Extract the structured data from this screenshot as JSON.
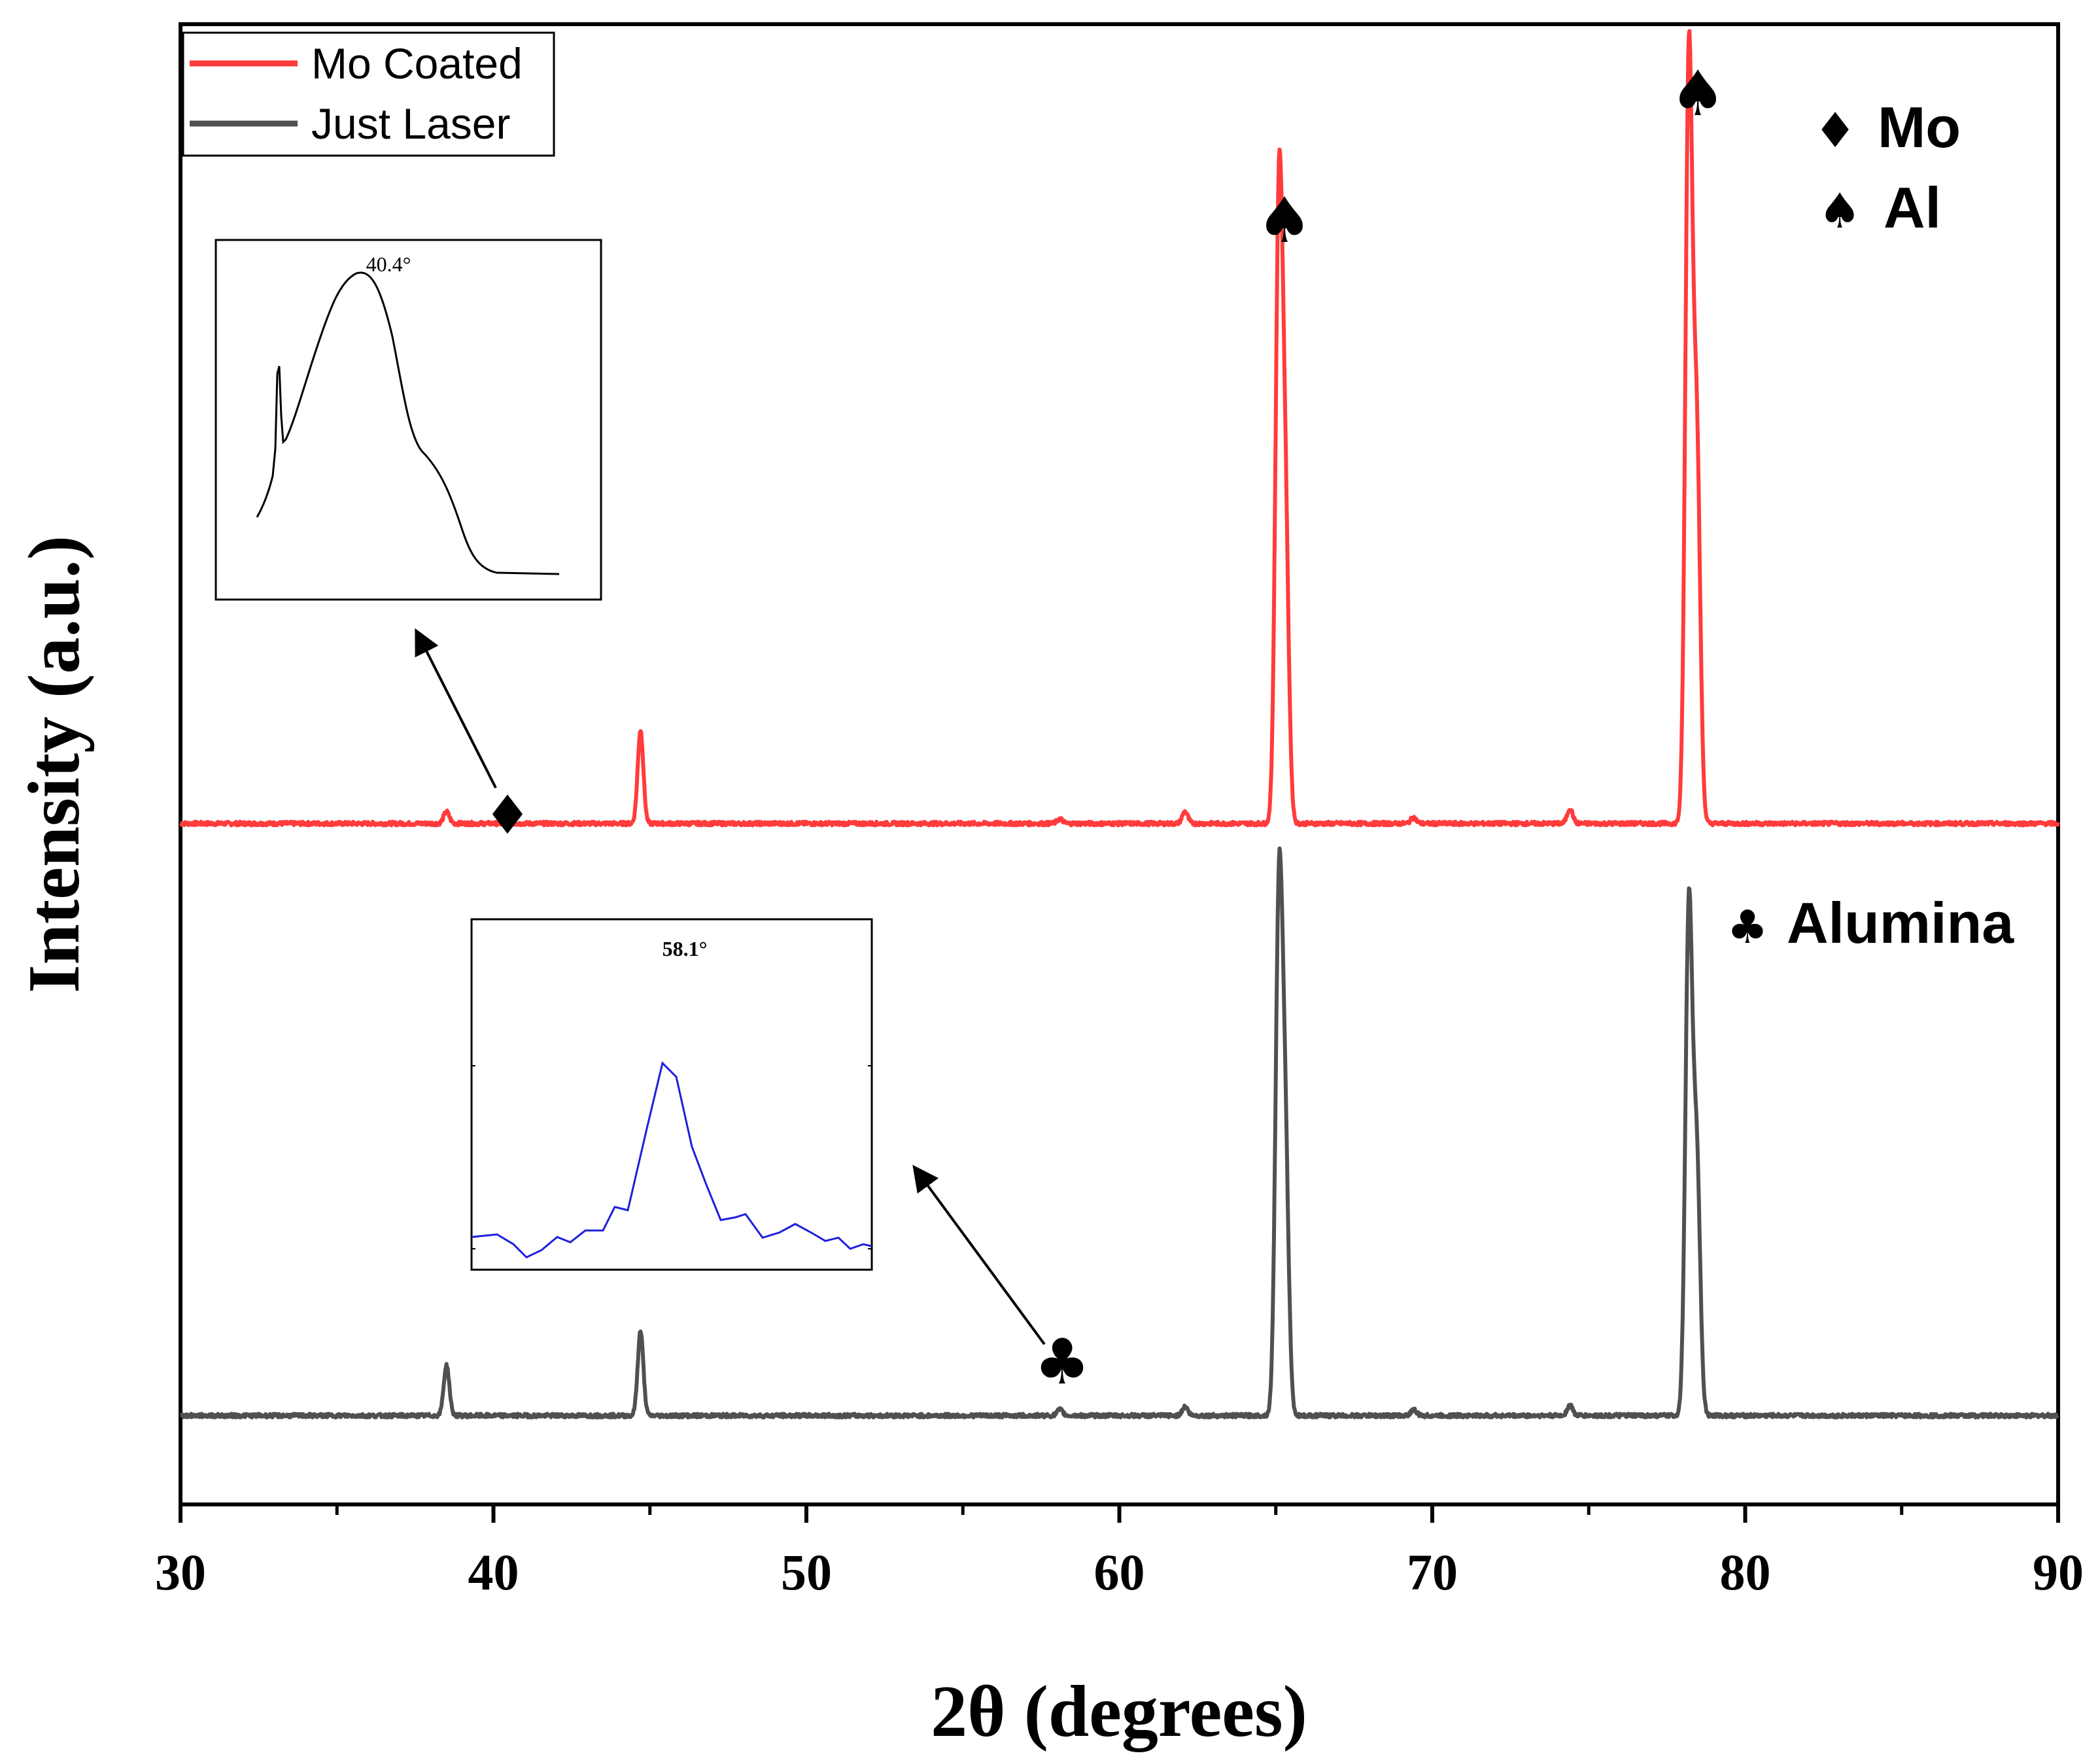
{
  "chart_data": {
    "type": "line",
    "xlabel": "2θ (degrees)",
    "ylabel": "Intensity (a.u.)",
    "xlim": [
      30,
      90
    ],
    "xticks": [
      "30",
      "40",
      "50",
      "60",
      "70",
      "80",
      "90"
    ],
    "ylim": [
      0,
      1
    ],
    "grid": false,
    "legend_position": "top-left",
    "series": [
      {
        "name": "Mo Coated",
        "color": "#ff3b3b",
        "baseline": 0.46,
        "peaks": [
          {
            "x": 38.5,
            "h": 0.008
          },
          {
            "x": 44.7,
            "h": 0.063
          },
          {
            "x": 58.1,
            "h": 0.003
          },
          {
            "x": 62.1,
            "h": 0.008
          },
          {
            "x": 65.1,
            "h": 0.41
          },
          {
            "x": 65.3,
            "h": 0.2
          },
          {
            "x": 69.4,
            "h": 0.004
          },
          {
            "x": 74.4,
            "h": 0.01
          },
          {
            "x": 78.2,
            "h": 0.515
          },
          {
            "x": 78.45,
            "h": 0.255
          }
        ]
      },
      {
        "name": "Just Laser",
        "color": "#505050",
        "baseline": 0.06,
        "peaks": [
          {
            "x": 38.5,
            "h": 0.034
          },
          {
            "x": 44.7,
            "h": 0.057
          },
          {
            "x": 58.1,
            "h": 0.004
          },
          {
            "x": 62.1,
            "h": 0.006
          },
          {
            "x": 65.1,
            "h": 0.342
          },
          {
            "x": 65.3,
            "h": 0.175
          },
          {
            "x": 69.4,
            "h": 0.004
          },
          {
            "x": 74.4,
            "h": 0.007
          },
          {
            "x": 78.2,
            "h": 0.342
          },
          {
            "x": 78.45,
            "h": 0.172
          }
        ]
      }
    ],
    "annotations": [
      {
        "symbol": "♦",
        "x": 40.4,
        "series": "Mo Coated",
        "label": "Mo"
      },
      {
        "symbol": "♠",
        "x": 65.1,
        "series": "Mo Coated",
        "label": "Al"
      },
      {
        "symbol": "♠",
        "x": 78.3,
        "series": "Mo Coated",
        "label": "Al"
      },
      {
        "symbol": "♣",
        "x": 58.1,
        "series": "Just Laser",
        "label": "Alumina"
      }
    ],
    "insets": [
      {
        "peak_label": "40.4°",
        "color": "#000000",
        "series": "Mo Coated"
      },
      {
        "peak_label": "58.1°",
        "color": "#1f1fdd",
        "series": "Just Laser"
      }
    ],
    "phase_key": [
      {
        "symbol": "♦",
        "label": "Mo"
      },
      {
        "symbol": "♠",
        "label": "Al"
      },
      {
        "symbol": "♣",
        "label": "Alumina"
      }
    ]
  }
}
